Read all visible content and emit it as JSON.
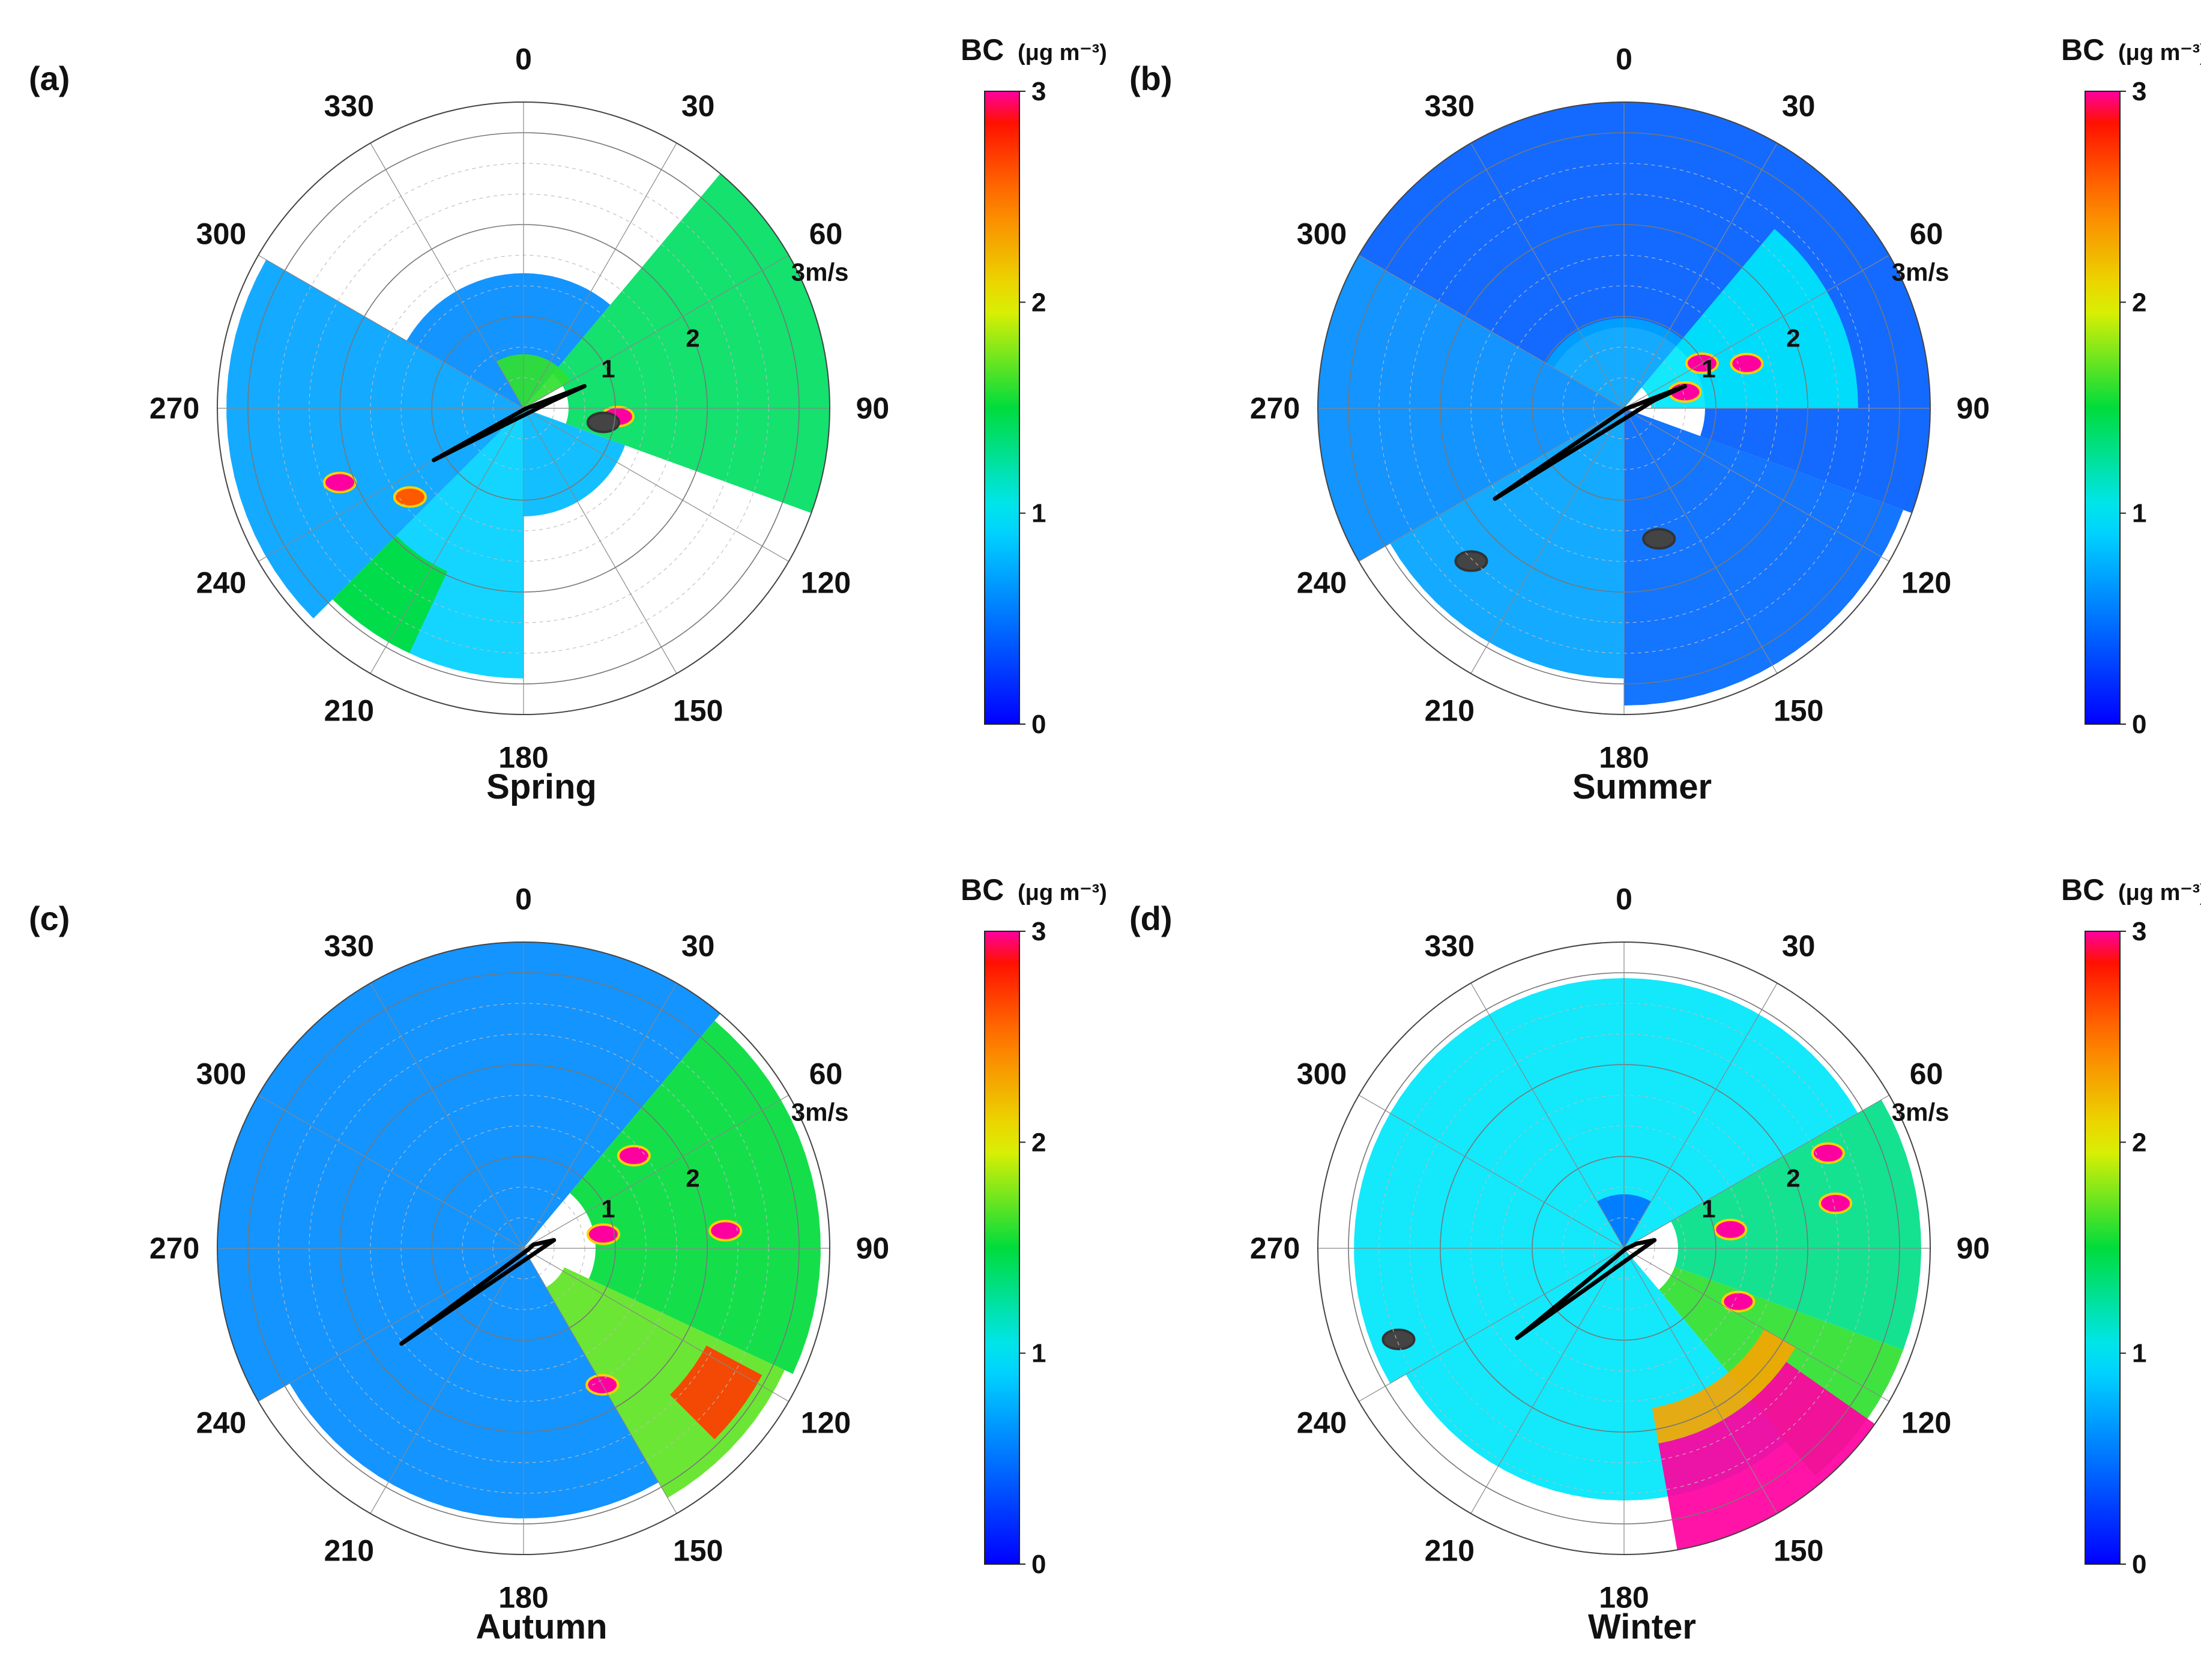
{
  "chart_data": [
    {
      "type": "heatmap",
      "panel_label": "(a)",
      "title": "Spring",
      "angular_ticks": [
        "0",
        "30",
        "60",
        "90",
        "120",
        "150",
        "180",
        "210",
        "240",
        "270",
        "300",
        "330"
      ],
      "radial_labels": [
        "1",
        "2",
        "3m/s"
      ],
      "colorbar": {
        "title": "BC",
        "unit": "(μg m⁻³)",
        "ticks": [
          "0",
          "1",
          "2",
          "3"
        ],
        "range": [
          0,
          3
        ]
      },
      "sectors": [
        {
          "dir_from": 225,
          "dir_to": 300,
          "r_from": 0.0,
          "r_to": 3.3,
          "value": 0.7
        },
        {
          "dir_from": 300,
          "dir_to": 40,
          "r_from": 0.0,
          "r_to": 1.5,
          "value": 0.6
        },
        {
          "dir_from": 40,
          "dir_to": 110,
          "r_from": 0.5,
          "r_to": 3.4,
          "value": 1.4
        },
        {
          "dir_from": 110,
          "dir_to": 180,
          "r_from": 0.0,
          "r_to": 1.2,
          "value": 0.8
        },
        {
          "dir_from": 180,
          "dir_to": 225,
          "r_from": 0.0,
          "r_to": 3.0,
          "value": 0.9
        },
        {
          "dir_from": 205,
          "dir_to": 225,
          "r_from": 2.0,
          "r_to": 3.0,
          "value": 1.5
        },
        {
          "dir_from": 330,
          "dir_to": 60,
          "r_from": 0.0,
          "r_to": 0.6,
          "value": 1.6
        }
      ],
      "hotspots": [
        {
          "dir": 95,
          "speed": 1.05,
          "value": 3.0
        },
        {
          "dir": 248,
          "speed": 2.2,
          "value": 3.0
        },
        {
          "dir": 232,
          "speed": 1.6,
          "value": 2.6
        },
        {
          "dir": 100,
          "speed": 0.9,
          "value": 0.0
        }
      ],
      "trajectory": [
        [
          75,
          0.35
        ],
        [
          70,
          0.72
        ],
        [
          110,
          0.02
        ],
        [
          240,
          1.15
        ]
      ]
    },
    {
      "type": "heatmap",
      "panel_label": "(b)",
      "title": "Summer",
      "angular_ticks": [
        "0",
        "30",
        "60",
        "90",
        "120",
        "150",
        "180",
        "210",
        "240",
        "270",
        "300",
        "330"
      ],
      "radial_labels": [
        "1",
        "2",
        "3m/s"
      ],
      "colorbar": {
        "title": "BC",
        "unit": "(μg m⁻³)",
        "ticks": [
          "0",
          "1",
          "2",
          "3"
        ],
        "range": [
          0,
          3
        ]
      },
      "sectors": [
        {
          "dir_from": 300,
          "dir_to": 110,
          "r_from": 0.9,
          "r_to": 4.0,
          "value": 0.4
        },
        {
          "dir_from": 240,
          "dir_to": 300,
          "r_from": 0.0,
          "r_to": 3.8,
          "value": 0.6
        },
        {
          "dir_from": 110,
          "dir_to": 180,
          "r_from": 0.0,
          "r_to": 3.3,
          "value": 0.45
        },
        {
          "dir_from": 180,
          "dir_to": 240,
          "r_from": 0.0,
          "r_to": 3.0,
          "value": 0.7
        },
        {
          "dir_from": 40,
          "dir_to": 90,
          "r_from": 0.3,
          "r_to": 2.6,
          "value": 1.0
        },
        {
          "dir_from": 300,
          "dir_to": 40,
          "r_from": 0.0,
          "r_to": 1.0,
          "value": 0.7
        }
      ],
      "hotspots": [
        {
          "dir": 60,
          "speed": 1.0,
          "value": 3.0
        },
        {
          "dir": 75,
          "speed": 0.7,
          "value": 3.0
        },
        {
          "dir": 70,
          "speed": 1.45,
          "value": 3.0
        },
        {
          "dir": 165,
          "speed": 1.5,
          "value": 0.0
        },
        {
          "dir": 225,
          "speed": 2.4,
          "value": 0.0
        }
      ],
      "trajectory": [
        [
          75,
          0.35
        ],
        [
          70,
          0.72
        ],
        [
          110,
          0.02
        ],
        [
          235,
          1.75
        ]
      ]
    },
    {
      "type": "heatmap",
      "panel_label": "(c)",
      "title": "Autumn",
      "angular_ticks": [
        "0",
        "30",
        "60",
        "90",
        "120",
        "150",
        "180",
        "210",
        "240",
        "270",
        "300",
        "330"
      ],
      "radial_labels": [
        "1",
        "2",
        "3m/s"
      ],
      "colorbar": {
        "title": "BC",
        "unit": "(μg m⁻³)",
        "ticks": [
          "0",
          "1",
          "2",
          "3"
        ],
        "range": [
          0,
          3
        ]
      },
      "sectors": [
        {
          "dir_from": 240,
          "dir_to": 40,
          "r_from": 0.0,
          "r_to": 3.4,
          "value": 0.6
        },
        {
          "dir_from": 40,
          "dir_to": 115,
          "r_from": 0.8,
          "r_to": 3.3,
          "value": 1.5
        },
        {
          "dir_from": 115,
          "dir_to": 150,
          "r_from": 0.5,
          "r_to": 3.2,
          "value": 1.7
        },
        {
          "dir_from": 150,
          "dir_to": 240,
          "r_from": 0.0,
          "r_to": 3.0,
          "value": 0.6
        },
        {
          "dir_from": 118,
          "dir_to": 135,
          "r_from": 2.3,
          "r_to": 3.0,
          "value": 2.7
        }
      ],
      "hotspots": [
        {
          "dir": 50,
          "speed": 1.6,
          "value": 3.0
        },
        {
          "dir": 80,
          "speed": 0.9,
          "value": 3.0
        },
        {
          "dir": 150,
          "speed": 1.75,
          "value": 3.0
        },
        {
          "dir": 85,
          "speed": 2.25,
          "value": 3.0
        }
      ],
      "trajectory": [
        [
          75,
          0.35
        ],
        [
          70,
          0.12
        ],
        [
          110,
          0.05
        ],
        [
          232,
          1.72
        ]
      ]
    },
    {
      "type": "heatmap",
      "panel_label": "(d)",
      "title": "Winter",
      "angular_ticks": [
        "0",
        "30",
        "60",
        "90",
        "120",
        "150",
        "180",
        "210",
        "240",
        "270",
        "300",
        "330"
      ],
      "radial_labels": [
        "1",
        "2",
        "3m/s"
      ],
      "colorbar": {
        "title": "BC",
        "unit": "(μg m⁻³)",
        "ticks": [
          "0",
          "1",
          "2",
          "3"
        ],
        "range": [
          0,
          3
        ]
      },
      "sectors": [
        {
          "dir_from": 240,
          "dir_to": 60,
          "r_from": 0.0,
          "r_to": 3.0,
          "value": 1.0
        },
        {
          "dir_from": 60,
          "dir_to": 110,
          "r_from": 0.6,
          "r_to": 3.3,
          "value": 1.3
        },
        {
          "dir_from": 110,
          "dir_to": 140,
          "r_from": 0.6,
          "r_to": 3.3,
          "value": 1.6
        },
        {
          "dir_from": 140,
          "dir_to": 240,
          "r_from": 0.0,
          "r_to": 2.8,
          "value": 1.0
        },
        {
          "dir_from": 125,
          "dir_to": 170,
          "r_from": 2.2,
          "r_to": 3.4,
          "value": 3.0
        },
        {
          "dir_from": 120,
          "dir_to": 170,
          "r_from": 1.8,
          "r_to": 2.2,
          "value": 2.3
        },
        {
          "dir_from": 330,
          "dir_to": 30,
          "r_from": 0.0,
          "r_to": 0.6,
          "value": 0.5
        }
      ],
      "hotspots": [
        {
          "dir": 65,
          "speed": 2.5,
          "value": 3.0
        },
        {
          "dir": 78,
          "speed": 2.4,
          "value": 3.0
        },
        {
          "dir": 115,
          "speed": 1.4,
          "value": 3.0
        },
        {
          "dir": 80,
          "speed": 1.2,
          "value": 3.0
        },
        {
          "dir": 248,
          "speed": 2.7,
          "value": 0.0
        }
      ],
      "trajectory": [
        [
          75,
          0.35
        ],
        [
          70,
          0.15
        ],
        [
          110,
          0.02
        ],
        [
          230,
          1.55
        ]
      ]
    }
  ]
}
